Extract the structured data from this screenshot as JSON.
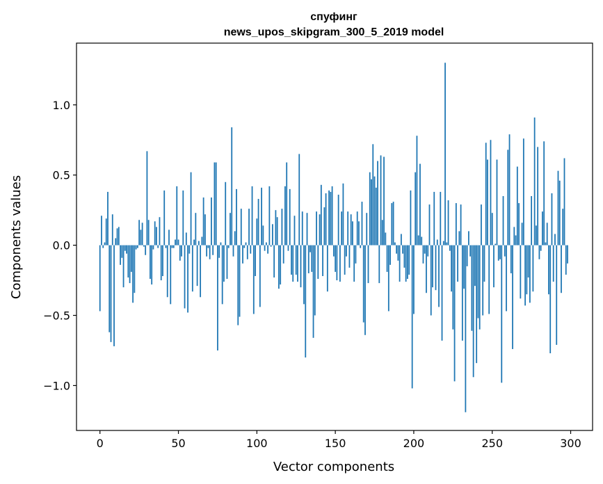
{
  "chart_data": {
    "type": "bar",
    "title_line1": "спуфинг",
    "title_line2": "news_upos_skipgram_300_5_2019 model",
    "xlabel": "Vector components",
    "ylabel": "Components values",
    "xlim": [
      -14.95,
      313.95
    ],
    "ylim": [
      -1.32,
      1.44
    ],
    "xticks": [
      0,
      50,
      100,
      150,
      200,
      250,
      300
    ],
    "xtick_labels": [
      "0",
      "50",
      "100",
      "150",
      "200",
      "250",
      "300"
    ],
    "yticks": [
      -1.0,
      -0.5,
      0.0,
      0.5,
      1.0
    ],
    "ytick_labels": [
      "−1.0",
      "−0.5",
      "0.0",
      "0.5",
      "1.0"
    ],
    "color": "#1f77b4",
    "grid": false,
    "values": [
      -0.47,
      0.21,
      -0.02,
      0.02,
      0.19,
      0.38,
      -0.62,
      -0.69,
      0.22,
      -0.72,
      0.05,
      0.12,
      0.13,
      -0.14,
      -0.09,
      -0.3,
      -0.04,
      -0.06,
      -0.23,
      -0.27,
      -0.19,
      -0.41,
      -0.34,
      -0.03,
      -0.02,
      0.18,
      0.11,
      0.16,
      -0.01,
      -0.07,
      0.67,
      0.18,
      -0.24,
      -0.28,
      -0.03,
      0.17,
      0.13,
      -0.02,
      0.2,
      -0.25,
      -0.22,
      0.39,
      -0.02,
      -0.37,
      0.11,
      -0.42,
      -0.02,
      -0.02,
      0.04,
      0.42,
      0.04,
      -0.11,
      -0.08,
      0.39,
      -0.45,
      0.09,
      -0.48,
      -0.06,
      0.52,
      -0.33,
      0.04,
      0.23,
      -0.29,
      0.03,
      -0.37,
      0.06,
      0.34,
      0.22,
      -0.08,
      -0.02,
      -0.1,
      0.34,
      -0.07,
      0.59,
      0.59,
      -0.75,
      -0.09,
      0.02,
      -0.42,
      -0.26,
      0.45,
      -0.24,
      -0.02,
      0.23,
      0.84,
      -0.08,
      0.1,
      0.4,
      -0.57,
      -0.51,
      0.26,
      -0.13,
      -0.02,
      0.02,
      -0.1,
      0.26,
      -0.06,
      0.42,
      -0.49,
      -0.22,
      0.19,
      0.33,
      -0.44,
      0.41,
      0.14,
      -0.04,
      0.02,
      -0.06,
      0.42,
      -0.01,
      0.15,
      -0.23,
      0.25,
      0.2,
      -0.31,
      -0.28,
      0.26,
      -0.13,
      0.42,
      0.59,
      -0.04,
      0.4,
      -0.21,
      -0.26,
      0.21,
      -0.21,
      -0.26,
      0.65,
      -0.3,
      0.24,
      -0.42,
      -0.8,
      0.23,
      -0.2,
      -0.05,
      -0.19,
      -0.66,
      -0.5,
      0.24,
      -0.24,
      0.22,
      0.43,
      -0.22,
      0.27,
      0.37,
      -0.33,
      0.39,
      0.38,
      0.42,
      -0.08,
      -0.19,
      -0.25,
      0.36,
      -0.26,
      0.24,
      0.44,
      -0.21,
      -0.08,
      0.24,
      -0.16,
      0.22,
      0.17,
      -0.26,
      -0.13,
      0.24,
      0.17,
      -0.02,
      0.31,
      -0.55,
      -0.64,
      0.23,
      -0.27,
      0.52,
      0.47,
      0.72,
      0.49,
      0.41,
      0.6,
      -0.27,
      0.64,
      0.18,
      0.63,
      0.09,
      -0.19,
      -0.47,
      -0.14,
      0.3,
      0.31,
      0.02,
      -0.06,
      -0.11,
      -0.26,
      0.08,
      -0.06,
      -0.16,
      -0.26,
      -0.24,
      -0.21,
      0.39,
      -1.02,
      -0.49,
      0.52,
      0.78,
      0.07,
      0.58,
      0.06,
      -0.13,
      -0.06,
      -0.34,
      -0.08,
      0.29,
      -0.5,
      -0.3,
      0.38,
      -0.32,
      0.04,
      -0.44,
      0.38,
      -0.68,
      0.03,
      1.3,
      0.02,
      0.32,
      -0.04,
      -0.33,
      -0.6,
      -0.97,
      0.3,
      -0.26,
      0.1,
      0.29,
      -0.68,
      -0.31,
      -1.19,
      -0.15,
      0.1,
      -0.08,
      -0.61,
      -0.94,
      -0.29,
      -0.84,
      -0.52,
      -0.6,
      0.29,
      -0.5,
      -0.26,
      0.73,
      0.61,
      -0.49,
      0.75,
      0.23,
      -0.3,
      0.01,
      0.61,
      -0.11,
      -0.1,
      -0.98,
      0.35,
      -0.08,
      -0.47,
      0.68,
      0.79,
      -0.2,
      -0.74,
      0.13,
      0.07,
      0.56,
      0.3,
      -0.38,
      0.16,
      0.76,
      -0.43,
      -0.35,
      -0.23,
      -0.41,
      0.35,
      -0.33,
      0.91,
      0.14,
      0.7,
      -0.1,
      -0.04,
      0.24,
      0.74,
      0.02,
      0.16,
      -0.35,
      -0.77,
      0.37,
      -0.26,
      0.08,
      -0.71,
      0.53,
      0.46,
      -0.34,
      0.26,
      0.62,
      -0.21,
      -0.13
    ]
  }
}
